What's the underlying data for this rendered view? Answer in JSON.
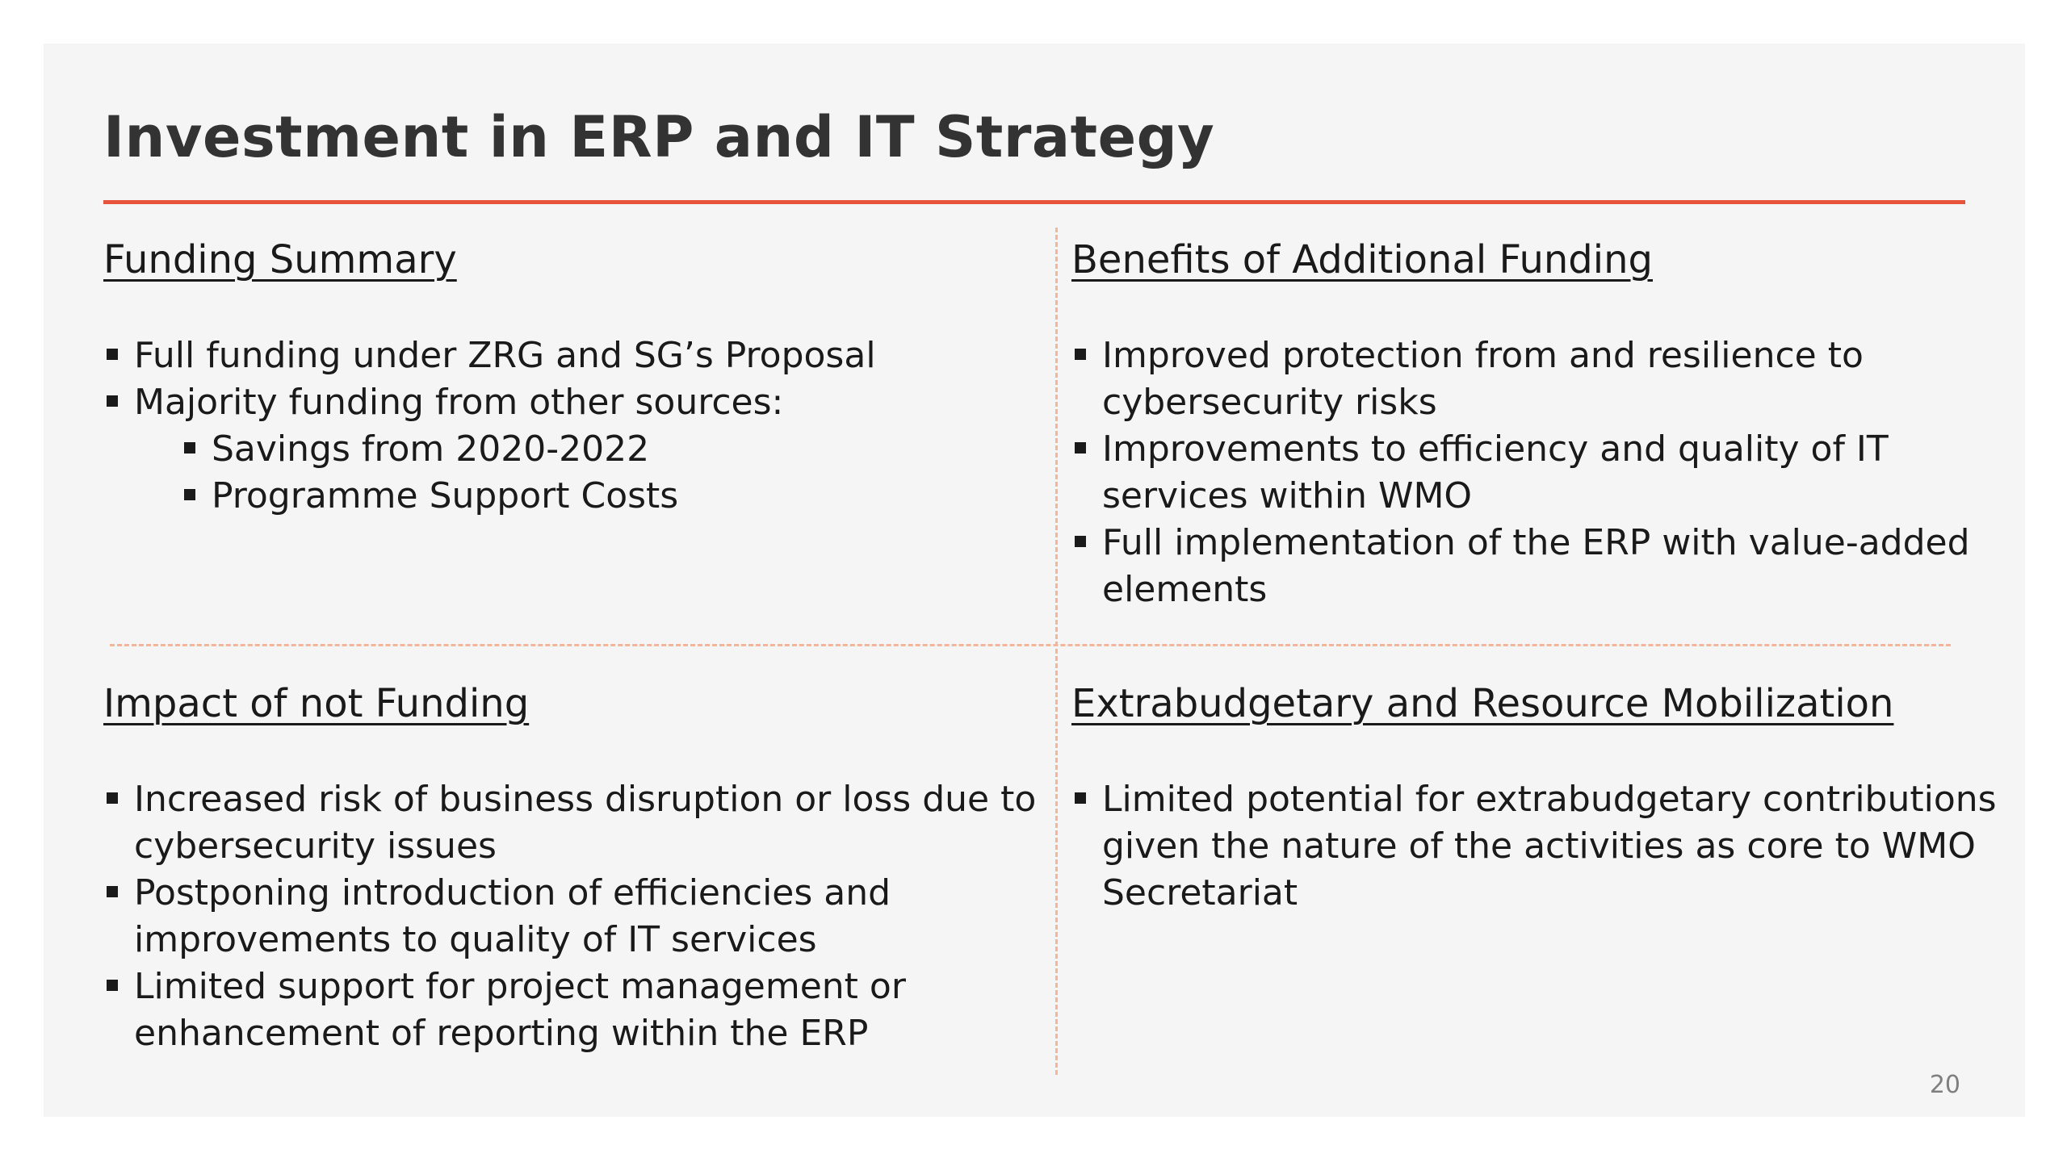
{
  "slide": {
    "title": "Investment in ERP and IT Strategy",
    "page_number": "20",
    "colors": {
      "accent": "#e8533b",
      "divider": "#f3b69b",
      "background": "#f5f5f5",
      "text": "#1a1a1a"
    }
  },
  "sections": {
    "funding_summary": {
      "heading": "Funding Summary",
      "bullets": [
        "Full funding under ZRG and SG’s Proposal",
        "Majority funding from other sources:",
        "Savings from 2020-2022",
        "Programme Support Costs"
      ]
    },
    "benefits": {
      "heading": "Benefits of Additional Funding",
      "bullets": [
        "Improved protection from and resilience to cybersecurity risks",
        "Improvements to efficiency and quality of IT services within WMO",
        "Full implementation of the ERP with value-added elements"
      ]
    },
    "impact": {
      "heading": "Impact of not Funding",
      "bullets": [
        "Increased risk of business disruption or loss due to cybersecurity issues",
        "Postponing introduction of efficiencies and improvements to quality of IT services",
        "Limited support for project management or enhancement of reporting within the ERP"
      ]
    },
    "extrabudgetary": {
      "heading": "Extrabudgetary and Resource Mobilization",
      "bullets": [
        "Limited potential for extrabudgetary contributions given the nature of the activities as core to WMO Secretariat"
      ]
    }
  }
}
